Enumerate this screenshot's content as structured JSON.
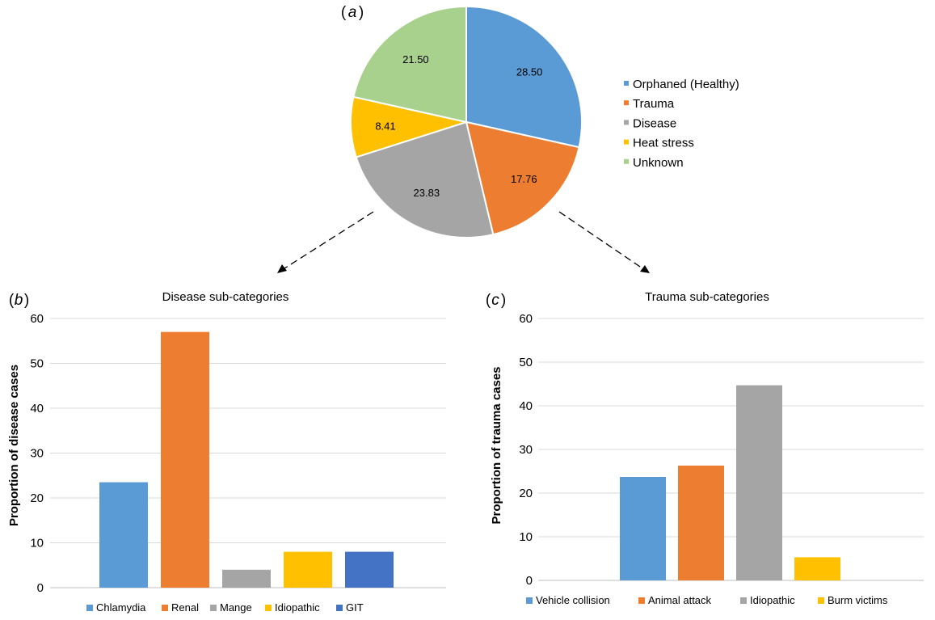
{
  "chart_data": [
    {
      "panel_label": "a",
      "type": "pie",
      "categories": [
        "Orphaned (Healthy)",
        "Trauma",
        "Disease",
        "Heat stress",
        "Unknown"
      ],
      "values": [
        28.5,
        17.76,
        23.83,
        8.41,
        21.5
      ],
      "value_labels": [
        "28.50",
        "17.76",
        "23.83",
        "8.41",
        "21.50"
      ],
      "colors": [
        "#5b9bd5",
        "#ed7d31",
        "#a5a5a5",
        "#ffc000",
        "#a9d18e"
      ],
      "legend_position": "right"
    },
    {
      "panel_label": "b",
      "type": "bar",
      "title": "Disease sub-categories",
      "ylabel": "Proportion of disease cases",
      "categories": [
        "Chlamydia",
        "Renal",
        "Mange",
        "Idiopathic",
        "GIT"
      ],
      "values": [
        23.5,
        57,
        4,
        8,
        8
      ],
      "colors": [
        "#5b9bd5",
        "#ed7d31",
        "#a5a5a5",
        "#ffc000",
        "#4472c4"
      ],
      "ylim": [
        0,
        60
      ],
      "yticks": [
        "0",
        "10",
        "20",
        "30",
        "40",
        "50",
        "60"
      ],
      "grid": true,
      "legend_position": "bottom"
    },
    {
      "panel_label": "c",
      "type": "bar",
      "title": "Trauma sub-categories",
      "ylabel": "Proportion of trauma cases",
      "categories": [
        "Vehicle collision",
        "Animal attack",
        "Idiopathic",
        "Burm victims"
      ],
      "values": [
        23.7,
        26.3,
        44.7,
        5.3
      ],
      "colors": [
        "#5b9bd5",
        "#ed7d31",
        "#a5a5a5",
        "#ffc000"
      ],
      "ylim": [
        0,
        60
      ],
      "yticks": [
        "0",
        "10",
        "20",
        "30",
        "40",
        "50",
        "60"
      ],
      "grid": true,
      "legend_position": "bottom"
    }
  ]
}
